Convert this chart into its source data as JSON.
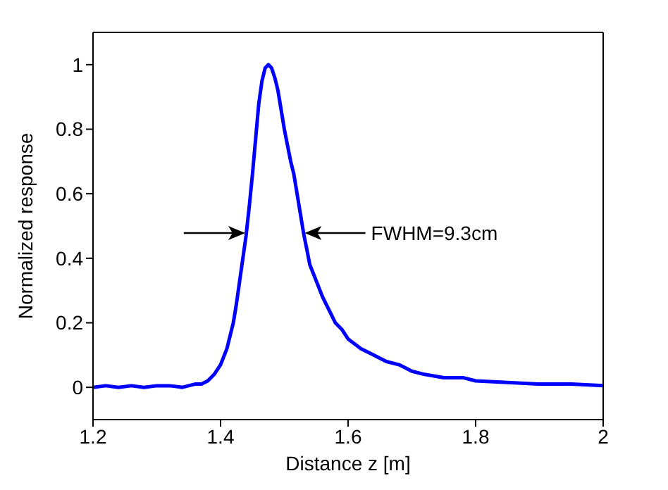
{
  "chart_data": {
    "type": "line",
    "xlabel": "Distance z [m]",
    "ylabel": "Normalized response",
    "x": [
      1.2,
      1.22,
      1.24,
      1.26,
      1.28,
      1.3,
      1.32,
      1.34,
      1.36,
      1.37,
      1.38,
      1.39,
      1.4,
      1.41,
      1.42,
      1.425,
      1.43,
      1.435,
      1.44,
      1.445,
      1.45,
      1.455,
      1.46,
      1.465,
      1.47,
      1.475,
      1.48,
      1.485,
      1.49,
      1.495,
      1.5,
      1.505,
      1.51,
      1.515,
      1.52,
      1.525,
      1.53,
      1.535,
      1.54,
      1.55,
      1.56,
      1.57,
      1.58,
      1.59,
      1.6,
      1.62,
      1.64,
      1.66,
      1.68,
      1.7,
      1.72,
      1.75,
      1.78,
      1.8,
      1.85,
      1.9,
      1.95,
      2.0
    ],
    "series": [
      {
        "color": "#0000ff",
        "values": [
          0.0,
          0.005,
          0.0,
          0.005,
          0.0,
          0.005,
          0.005,
          0.0,
          0.01,
          0.01,
          0.02,
          0.04,
          0.07,
          0.12,
          0.2,
          0.26,
          0.33,
          0.4,
          0.47,
          0.56,
          0.66,
          0.77,
          0.88,
          0.95,
          0.99,
          1.0,
          0.99,
          0.96,
          0.92,
          0.86,
          0.8,
          0.75,
          0.7,
          0.66,
          0.6,
          0.54,
          0.48,
          0.43,
          0.38,
          0.33,
          0.28,
          0.24,
          0.2,
          0.18,
          0.15,
          0.12,
          0.1,
          0.08,
          0.07,
          0.05,
          0.04,
          0.03,
          0.03,
          0.02,
          0.015,
          0.01,
          0.01,
          0.005
        ]
      }
    ],
    "xlim": [
      1.2,
      2
    ],
    "xticks": [
      1.2,
      1.4,
      1.6,
      1.8,
      2
    ],
    "ylim": [
      -0.1,
      1.1
    ],
    "yticks": [
      0,
      0.2,
      0.4,
      0.6,
      0.8,
      1
    ],
    "grid": false,
    "legend": false,
    "marker": "none",
    "line_style": "solid",
    "annotations": [
      {
        "text": "FWHM=9.3cm",
        "x": 1.531,
        "y": 0.476
      }
    ]
  }
}
